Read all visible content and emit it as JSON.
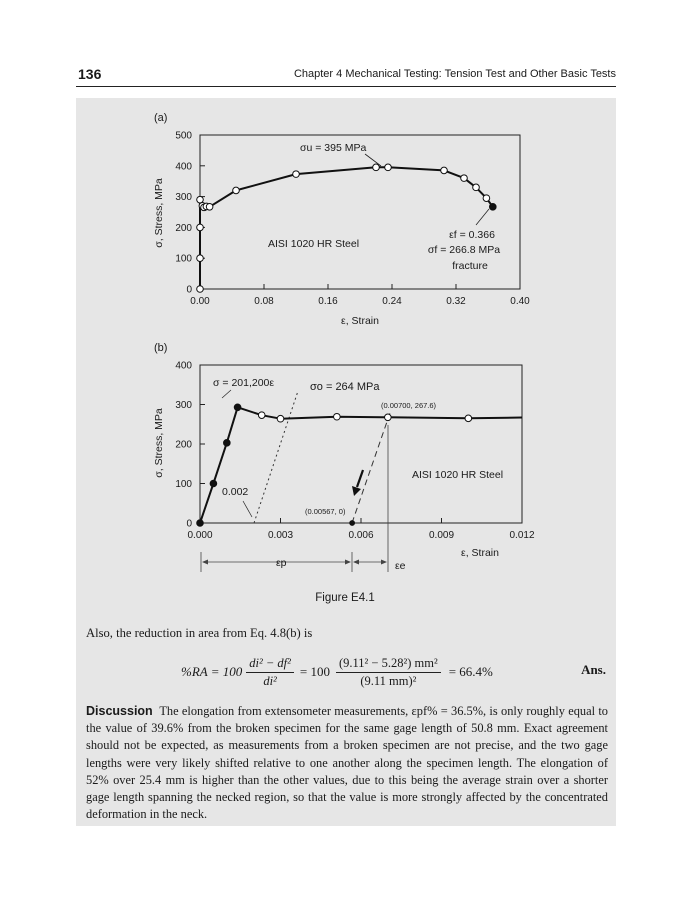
{
  "header": {
    "page_number": "136",
    "running_head": "Chapter 4   Mechanical Testing: Tension Test and Other Basic Tests"
  },
  "figure": {
    "caption": "Figure E4.1",
    "panel_a": {
      "label": "(a)",
      "ylabel": "σ, Stress, MPa",
      "xlabel": "ε, Strain",
      "yticks": [
        "0",
        "100",
        "200",
        "300",
        "400",
        "500"
      ],
      "xticks": [
        "0.00",
        "0.08",
        "0.16",
        "0.24",
        "0.32",
        "0.40"
      ],
      "annotation_su": "σu = 395 MPa",
      "material": "AISI 1020 HR Steel",
      "fracture_lines": [
        "εf = 0.366",
        "σf = 266.8 MPa",
        "fracture"
      ]
    },
    "panel_b": {
      "label": "(b)",
      "ylabel": "σ, Stress, MPa",
      "xlabel": "ε, Strain",
      "yticks": [
        "0",
        "100",
        "200",
        "300",
        "400"
      ],
      "xticks": [
        "0.000",
        "0.003",
        "0.006",
        "0.009",
        "0.012"
      ],
      "elastic_line": "σ = 201,200ε",
      "yield_label": "σo = 264 MPa",
      "offset_label": "0.002",
      "point_top": "(0.00700, 267.6)",
      "point_bottom": "(0.00567, 0)",
      "material": "AISI 1020 HR Steel",
      "eps_p": "εp",
      "eps_e": "εe"
    }
  },
  "chart_data": [
    {
      "type": "scatter",
      "title": "",
      "panel": "(a)",
      "xlabel": "ε, Strain",
      "ylabel": "σ, Stress, MPa",
      "xlim": [
        0,
        0.4
      ],
      "ylim": [
        0,
        500
      ],
      "series": [
        {
          "x": [
            0,
            0,
            0,
            0,
            0.003,
            0.005,
            0.008,
            0.012,
            0.045,
            0.12,
            0.22,
            0.235,
            0.305,
            0.33,
            0.345,
            0.358,
            0.366
          ],
          "y": [
            0,
            100,
            200,
            290,
            270,
            265,
            268,
            267,
            320,
            373,
            395,
            395,
            385,
            360,
            330,
            295,
            266.8
          ]
        }
      ]
    },
    {
      "type": "line",
      "title": "",
      "panel": "(b)",
      "xlabel": "ε, Strain",
      "ylabel": "σ, Stress, MPa",
      "xlim": [
        0,
        0.012
      ],
      "ylim": [
        0,
        400
      ],
      "series": [
        {
          "x": [
            0,
            0.0005,
            0.001,
            0.0014,
            0.0023,
            0.003,
            0.0051,
            0.007,
            0.01,
            0.012
          ],
          "y": [
            0,
            100,
            203,
            293,
            273,
            264,
            269,
            267.6,
            265,
            267
          ]
        }
      ]
    }
  ],
  "body": {
    "intro": "Also, the reduction in area from Eq. 4.8(b) is",
    "eq_lhs": "%RA = 100",
    "frac1_num": "di² − df²",
    "frac1_den": "di²",
    "eq_mid": "= 100",
    "frac2_num": "(9.11² − 5.28²) mm²",
    "frac2_den": "(9.11 mm)²",
    "eq_rhs": "= 66.4%",
    "ans": "Ans.",
    "discussion_head": "Discussion",
    "discussion_text": "The elongation from extensometer measurements, εpf% = 36.5%, is only roughly equal to the value of 39.6% from the broken specimen for the same gage length of 50.8 mm. Exact agreement should not be expected, as measurements from a broken specimen are not precise, and the two gage lengths were very likely shifted relative to one another along the specimen length. The elongation of 52% over 25.4 mm is higher than the other values, due to this being the average strain over a shorter gage length spanning the necked region, so that the value is more strongly affected by the concentrated deformation in the neck."
  }
}
